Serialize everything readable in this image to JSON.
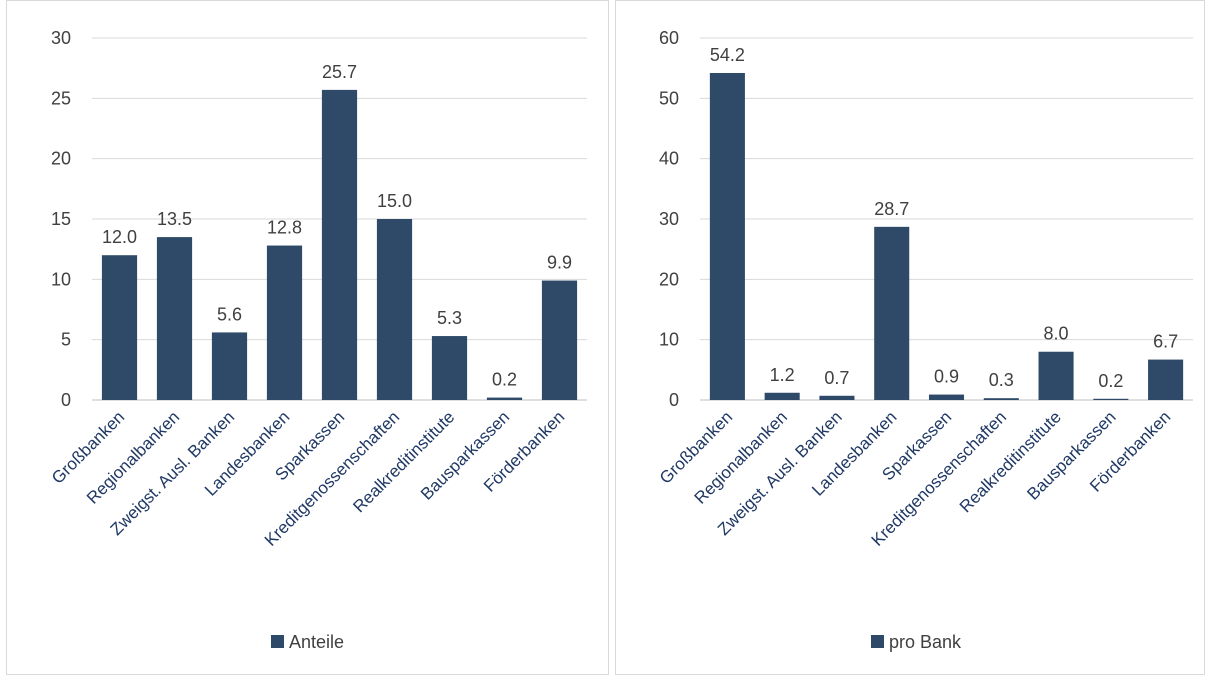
{
  "chart_data": [
    {
      "type": "bar",
      "categories": [
        "Großbanken",
        "Regionalbanken",
        "Zweigst. Ausl. Banken",
        "Landesbanken",
        "Sparkassen",
        "Kreditgenossenschaften",
        "Realkreditinstitute",
        "Bausparkassen",
        "Förderbanken"
      ],
      "series": [
        {
          "name": "Anteile",
          "values": [
            12.0,
            13.5,
            5.6,
            12.8,
            25.7,
            15.0,
            5.3,
            0.2,
            9.9
          ],
          "color": "#2e4a68"
        }
      ],
      "data_labels": [
        "12.0",
        "13.5",
        "5.6",
        "12.8",
        "25.7",
        "15.0",
        "5.3",
        "0.2",
        "9.9"
      ],
      "ylim": [
        0,
        30
      ],
      "yticks": [
        0,
        5,
        10,
        15,
        20,
        25,
        30
      ],
      "ytick_labels": [
        "0",
        "5",
        "10",
        "15",
        "20",
        "25",
        "30"
      ],
      "grid": true,
      "legend": "bottom"
    },
    {
      "type": "bar",
      "categories": [
        "Großbanken",
        "Regionalbanken",
        "Zweigst. Ausl. Banken",
        "Landesbanken",
        "Sparkassen",
        "Kreditgenossenschaften",
        "Realkreditinstitute",
        "Bausparkassen",
        "Förderbanken"
      ],
      "series": [
        {
          "name": "pro Bank",
          "values": [
            54.2,
            1.2,
            0.7,
            28.7,
            0.9,
            0.3,
            8.0,
            0.2,
            6.7
          ],
          "color": "#2e4a68"
        }
      ],
      "data_labels": [
        "54.2",
        "1.2",
        "0.7",
        "28.7",
        "0.9",
        "0.3",
        "8.0",
        "0.2",
        "6.7"
      ],
      "ylim": [
        0,
        60
      ],
      "yticks": [
        0,
        10,
        20,
        30,
        40,
        50,
        60
      ],
      "ytick_labels": [
        "0",
        "10",
        "20",
        "30",
        "40",
        "50",
        "60"
      ],
      "grid": true,
      "legend": "bottom"
    }
  ]
}
